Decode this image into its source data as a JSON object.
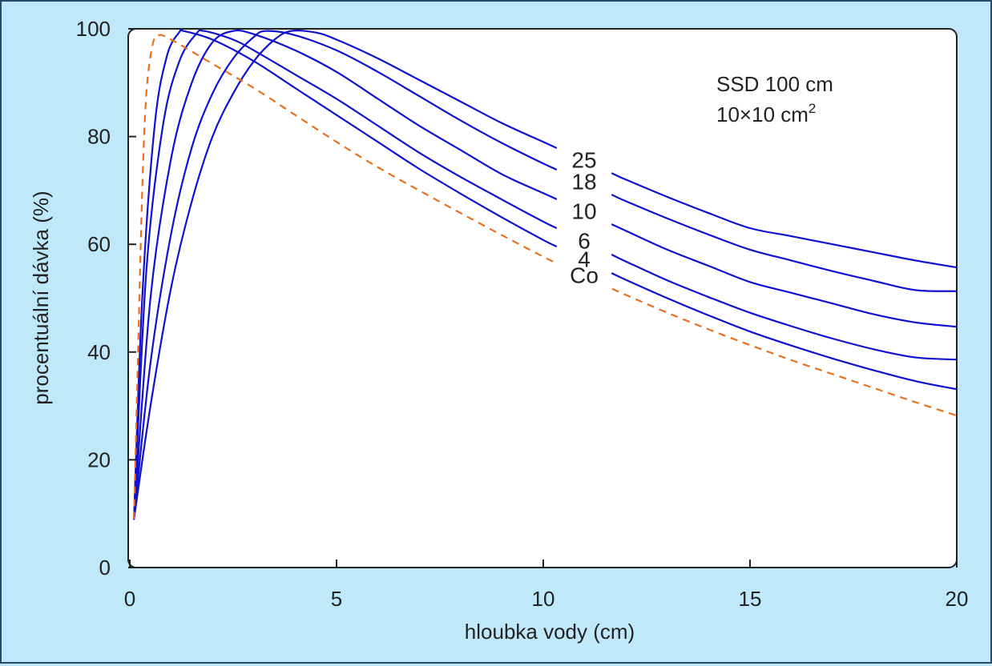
{
  "chart_data": {
    "type": "line",
    "title": "",
    "xlabel": "hloubka vody (cm)",
    "ylabel": "procentuální dávka (%)",
    "xlim": [
      0,
      20
    ],
    "ylim": [
      0,
      100
    ],
    "x_ticks": [
      0,
      5,
      10,
      15,
      20
    ],
    "y_ticks": [
      0,
      20,
      40,
      60,
      80,
      100
    ],
    "x_tick_labels": [
      "0",
      "5",
      "10",
      "15",
      "20"
    ],
    "y_tick_labels": [
      "0",
      "20",
      "40",
      "60",
      "80",
      "100"
    ],
    "grid": false,
    "annotation": {
      "line1": "SSD 100 cm",
      "line2": "10×10 cm",
      "line2_sup": "2"
    },
    "series": [
      {
        "name": "25",
        "color": "#1010d0",
        "dashed": false,
        "points": [
          [
            0.1,
            9
          ],
          [
            0.5,
            30
          ],
          [
            1,
            52
          ],
          [
            1.5,
            68
          ],
          [
            2,
            80
          ],
          [
            2.5,
            88
          ],
          [
            3,
            94
          ],
          [
            3.5,
            98
          ],
          [
            3.9,
            99.6
          ],
          [
            4.5,
            99.3
          ],
          [
            5,
            98
          ],
          [
            6,
            94.5
          ],
          [
            7,
            90.5
          ],
          [
            8,
            86.5
          ],
          [
            9,
            82.5
          ],
          [
            10,
            79
          ],
          [
            11,
            75.5
          ],
          [
            12,
            72
          ],
          [
            13,
            68.8
          ],
          [
            14,
            65.8
          ],
          [
            15,
            63
          ],
          [
            16,
            61.5
          ],
          [
            17,
            60
          ],
          [
            18,
            58.5
          ],
          [
            19,
            57
          ],
          [
            20,
            55.7
          ]
        ]
      },
      {
        "name": "18",
        "color": "#1010d0",
        "dashed": false,
        "points": [
          [
            0.1,
            9
          ],
          [
            0.5,
            38
          ],
          [
            1,
            62
          ],
          [
            1.5,
            78
          ],
          [
            2,
            88
          ],
          [
            2.5,
            94.5
          ],
          [
            3,
            98.5
          ],
          [
            3.3,
            99.6
          ],
          [
            4,
            98.8
          ],
          [
            5,
            96
          ],
          [
            6,
            92
          ],
          [
            7,
            87.5
          ],
          [
            8,
            83
          ],
          [
            9,
            78.8
          ],
          [
            10,
            75
          ],
          [
            11,
            71.5
          ],
          [
            12,
            68
          ],
          [
            13,
            64.8
          ],
          [
            14,
            61.8
          ],
          [
            15,
            59
          ],
          [
            16,
            57
          ],
          [
            17,
            55
          ],
          [
            18,
            53.2
          ],
          [
            19,
            51.5
          ],
          [
            20,
            51.3
          ]
        ]
      },
      {
        "name": "10",
        "color": "#1010d0",
        "dashed": false,
        "points": [
          [
            0.1,
            9
          ],
          [
            0.5,
            50
          ],
          [
            1,
            76
          ],
          [
            1.5,
            90
          ],
          [
            2,
            97.5
          ],
          [
            2.5,
            99.6
          ],
          [
            3,
            99
          ],
          [
            4,
            96
          ],
          [
            5,
            92
          ],
          [
            6,
            87
          ],
          [
            7,
            82
          ],
          [
            8,
            77.5
          ],
          [
            9,
            73
          ],
          [
            10,
            69.5
          ],
          [
            11,
            66
          ],
          [
            12,
            62.5
          ],
          [
            13,
            59
          ],
          [
            14,
            56
          ],
          [
            15,
            53
          ],
          [
            16,
            51
          ],
          [
            17,
            49
          ],
          [
            18,
            47
          ],
          [
            19,
            45.5
          ],
          [
            20,
            44.7
          ]
        ]
      },
      {
        "name": "6",
        "color": "#1010d0",
        "dashed": false,
        "points": [
          [
            0.1,
            9
          ],
          [
            0.4,
            55
          ],
          [
            0.8,
            82
          ],
          [
            1.2,
            94
          ],
          [
            1.6,
            99
          ],
          [
            1.8,
            99.6
          ],
          [
            2.5,
            98
          ],
          [
            3,
            96
          ],
          [
            4,
            91.5
          ],
          [
            5,
            87
          ],
          [
            6,
            82
          ],
          [
            7,
            77
          ],
          [
            8,
            72.5
          ],
          [
            9,
            68.3
          ],
          [
            10,
            64.2
          ],
          [
            11,
            60.5
          ],
          [
            12,
            56.8
          ],
          [
            13,
            53.3
          ],
          [
            14,
            50.2
          ],
          [
            15,
            47.3
          ],
          [
            16,
            44.8
          ],
          [
            17,
            42.5
          ],
          [
            18,
            40.5
          ],
          [
            19,
            39
          ],
          [
            20,
            38.6
          ]
        ]
      },
      {
        "name": "4",
        "color": "#1010d0",
        "dashed": false,
        "points": [
          [
            0.1,
            9
          ],
          [
            0.3,
            50
          ],
          [
            0.6,
            82
          ],
          [
            0.9,
            95
          ],
          [
            1.2,
            99.4
          ],
          [
            1.3,
            99.6
          ],
          [
            2,
            98
          ],
          [
            3,
            94
          ],
          [
            4,
            89
          ],
          [
            5,
            84
          ],
          [
            6,
            79
          ],
          [
            7,
            74
          ],
          [
            8,
            69.4
          ],
          [
            9,
            65
          ],
          [
            10,
            60.8
          ],
          [
            11,
            57
          ],
          [
            12,
            53.4
          ],
          [
            13,
            50
          ],
          [
            14,
            46.8
          ],
          [
            15,
            43.8
          ],
          [
            16,
            41.2
          ],
          [
            17,
            38.8
          ],
          [
            18,
            36.6
          ],
          [
            19,
            34.6
          ],
          [
            20,
            33.1
          ]
        ]
      },
      {
        "name": "Co",
        "color": "#e87020",
        "dashed": true,
        "points": [
          [
            0.1,
            9
          ],
          [
            0.2,
            40
          ],
          [
            0.3,
            70
          ],
          [
            0.4,
            88
          ],
          [
            0.55,
            97
          ],
          [
            0.7,
            98.8
          ],
          [
            1,
            98
          ],
          [
            2,
            93.5
          ],
          [
            3,
            89
          ],
          [
            4,
            84
          ],
          [
            5,
            79
          ],
          [
            6,
            74.3
          ],
          [
            7,
            70
          ],
          [
            8,
            65.8
          ],
          [
            9,
            61.7
          ],
          [
            10,
            57.7
          ],
          [
            11,
            54
          ],
          [
            12,
            50.6
          ],
          [
            13,
            47.3
          ],
          [
            14,
            44.2
          ],
          [
            15,
            41.3
          ],
          [
            16,
            38.5
          ],
          [
            17,
            35.9
          ],
          [
            18,
            33.3
          ],
          [
            19,
            30.7
          ],
          [
            20,
            28.2
          ]
        ]
      }
    ]
  }
}
